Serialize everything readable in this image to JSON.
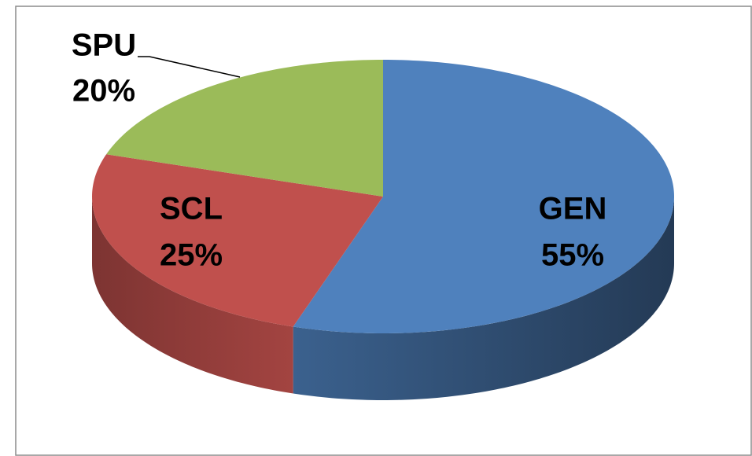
{
  "chart_data": {
    "type": "pie",
    "categories": [
      "GEN",
      "SCL",
      "SPU"
    ],
    "values": [
      55,
      25,
      20
    ],
    "value_labels": [
      "55%",
      "25%",
      "20%"
    ],
    "colors": [
      "#4f81bd",
      "#c0504d",
      "#9bbb59"
    ]
  }
}
